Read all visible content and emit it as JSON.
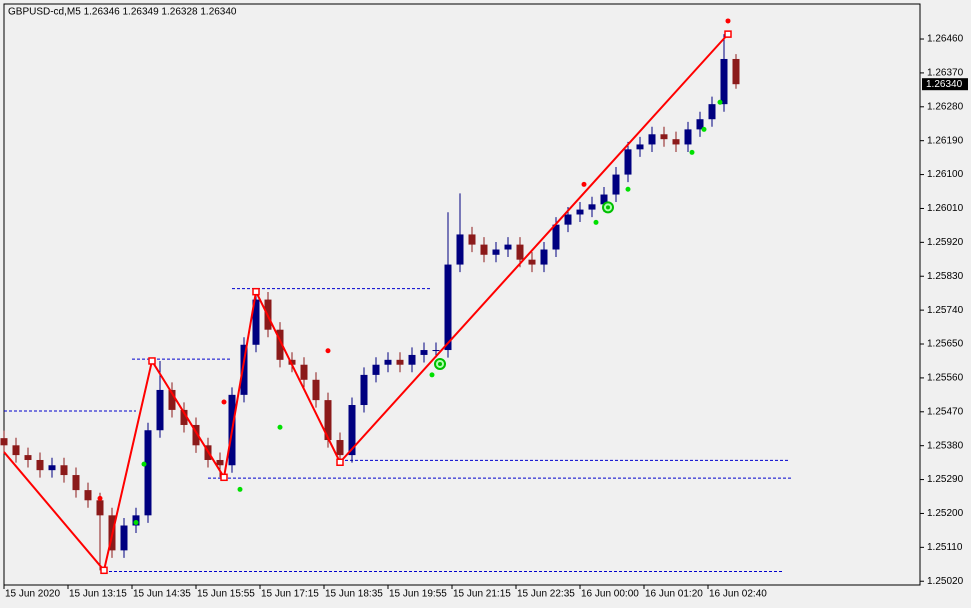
{
  "chart_data": {
    "type": "candlestick",
    "title": "GBPUSD-cd,M5  1.26346 1.26349 1.26328 1.26340",
    "x": [
      0,
      3,
      6,
      9,
      12,
      15,
      18,
      21,
      24,
      27,
      30,
      33,
      36,
      39,
      42,
      45,
      48,
      51,
      54,
      57,
      60,
      63,
      66,
      69,
      72,
      75,
      78,
      81,
      84,
      87,
      90,
      93,
      96,
      99,
      102,
      105,
      108,
      111,
      114,
      117,
      120,
      123,
      126,
      129,
      132,
      135,
      138,
      141,
      144,
      147,
      150,
      153,
      156,
      159,
      162,
      165,
      168,
      171,
      174,
      177,
      180,
      183
    ],
    "open": [
      1.254,
      1.25381,
      1.25355,
      1.25342,
      1.25315,
      1.25328,
      1.25302,
      1.25262,
      1.25235,
      1.25195,
      1.25102,
      1.25168,
      1.25195,
      1.25421,
      1.25528,
      1.25475,
      1.25435,
      1.25381,
      1.25342,
      1.25328,
      1.25515,
      1.25648,
      1.25768,
      1.25688,
      1.25608,
      1.25595,
      1.25555,
      1.25501,
      1.25395,
      1.25355,
      1.25488,
      1.25568,
      1.25595,
      1.25608,
      1.25595,
      1.25621,
      1.25634,
      1.25634,
      1.25861,
      1.25941,
      1.25914,
      1.25887,
      1.25901,
      1.25914,
      1.25874,
      1.25861,
      1.25901,
      1.25967,
      1.25994,
      1.26007,
      1.26021,
      1.26047,
      1.261,
      1.26167,
      1.2618,
      1.26207,
      1.26194,
      1.2618,
      1.2622,
      1.26247,
      1.26287,
      1.26407
    ],
    "high": [
      1.2542,
      1.25401,
      1.25375,
      1.25362,
      1.25348,
      1.25348,
      1.25322,
      1.25282,
      1.25255,
      1.25215,
      1.25188,
      1.25215,
      1.25441,
      1.25605,
      1.25548,
      1.25495,
      1.25455,
      1.25401,
      1.25362,
      1.25535,
      1.25668,
      1.25789,
      1.25788,
      1.25708,
      1.25628,
      1.25615,
      1.25575,
      1.25521,
      1.25415,
      1.25508,
      1.25588,
      1.25615,
      1.25628,
      1.25628,
      1.25641,
      1.25654,
      1.25654,
      1.26,
      1.2605,
      1.25961,
      1.25934,
      1.25921,
      1.25934,
      1.25934,
      1.25894,
      1.25921,
      1.25987,
      1.26014,
      1.26027,
      1.26041,
      1.26067,
      1.2612,
      1.26187,
      1.262,
      1.26227,
      1.26227,
      1.26214,
      1.2624,
      1.26267,
      1.26307,
      1.26473,
      1.2642
    ],
    "low": [
      1.25361,
      1.25335,
      1.25322,
      1.25295,
      1.25295,
      1.25282,
      1.25242,
      1.25215,
      1.25049,
      1.25082,
      1.25082,
      1.25148,
      1.25175,
      1.25401,
      1.25455,
      1.25415,
      1.25361,
      1.25322,
      1.25296,
      1.25308,
      1.25495,
      1.25628,
      1.25668,
      1.25588,
      1.25575,
      1.25535,
      1.25481,
      1.25375,
      1.25336,
      1.25335,
      1.25468,
      1.25548,
      1.25575,
      1.25575,
      1.25575,
      1.25601,
      1.25614,
      1.25614,
      1.25841,
      1.25894,
      1.25867,
      1.25867,
      1.25881,
      1.25854,
      1.25841,
      1.25841,
      1.25881,
      1.25947,
      1.25974,
      1.25987,
      1.26001,
      1.26027,
      1.2608,
      1.26147,
      1.2616,
      1.26174,
      1.2616,
      1.2616,
      1.262,
      1.26227,
      1.26267,
      1.26328
    ],
    "close": [
      1.25381,
      1.25355,
      1.25342,
      1.25315,
      1.25328,
      1.25302,
      1.25262,
      1.25235,
      1.25195,
      1.25102,
      1.25168,
      1.25195,
      1.25421,
      1.25528,
      1.25475,
      1.25435,
      1.25381,
      1.25342,
      1.25328,
      1.25515,
      1.25648,
      1.25768,
      1.25688,
      1.25608,
      1.25595,
      1.25555,
      1.25501,
      1.25395,
      1.25355,
      1.25488,
      1.25568,
      1.25595,
      1.25608,
      1.25595,
      1.25621,
      1.25634,
      1.25634,
      1.25861,
      1.25941,
      1.25914,
      1.25887,
      1.25901,
      1.25914,
      1.25874,
      1.25861,
      1.25901,
      1.25967,
      1.25994,
      1.26007,
      1.26021,
      1.26047,
      1.261,
      1.26167,
      1.2618,
      1.26207,
      1.26194,
      1.2618,
      1.2622,
      1.26247,
      1.26287,
      1.26407,
      1.2634
    ],
    "up_color": "#000080",
    "down_color": "#8b1a1a",
    "xlim": [
      0,
      229
    ],
    "ylim": [
      1.2501,
      1.26553
    ],
    "xticks": [
      {
        "value": 0,
        "label": "15 Jun 2020"
      },
      {
        "value": 16,
        "label": "15 Jun 13:15"
      },
      {
        "value": 32,
        "label": "15 Jun 14:35"
      },
      {
        "value": 48,
        "label": "15 Jun 15:55"
      },
      {
        "value": 64,
        "label": "15 Jun 17:15"
      },
      {
        "value": 80,
        "label": "15 Jun 18:35"
      },
      {
        "value": 96,
        "label": "15 Jun 19:55"
      },
      {
        "value": 112,
        "label": "15 Jun 21:15"
      },
      {
        "value": 128,
        "label": "15 Jun 22:35"
      },
      {
        "value": 144,
        "label": "16 Jun 00:00"
      },
      {
        "value": 160,
        "label": "16 Jun 01:20"
      },
      {
        "value": 176,
        "label": "16 Jun 02:40"
      }
    ],
    "yticks": [
      {
        "value": 1.2502,
        "label": "1.25020"
      },
      {
        "value": 1.2511,
        "label": "1.25110"
      },
      {
        "value": 1.252,
        "label": "1.25200"
      },
      {
        "value": 1.2529,
        "label": "1.25290"
      },
      {
        "value": 1.2538,
        "label": "1.25380"
      },
      {
        "value": 1.2547,
        "label": "1.25470"
      },
      {
        "value": 1.2556,
        "label": "1.25560"
      },
      {
        "value": 1.2565,
        "label": "1.25650"
      },
      {
        "value": 1.2574,
        "label": "1.25740"
      },
      {
        "value": 1.2583,
        "label": "1.25830"
      },
      {
        "value": 1.2592,
        "label": "1.25920"
      },
      {
        "value": 1.2601,
        "label": "1.26010"
      },
      {
        "value": 1.261,
        "label": "1.26100"
      },
      {
        "value": 1.2619,
        "label": "1.26190"
      },
      {
        "value": 1.2628,
        "label": "1.26280"
      },
      {
        "value": 1.2637,
        "label": "1.26370"
      },
      {
        "value": 1.2646,
        "label": "1.26460"
      }
    ],
    "grid": false,
    "current_price": {
      "value": 1.2634,
      "label": "1.26340"
    },
    "zigzag": {
      "color": "#ff0000",
      "x": [
        0,
        25,
        37,
        55,
        63,
        84,
        181
      ],
      "values": [
        1.25363,
        1.25049,
        1.25605,
        1.25296,
        1.25789,
        1.25336,
        1.26473
      ]
    },
    "levels": {
      "color": "#0000cd",
      "items": [
        {
          "x": [
            0,
            33
          ],
          "value": 1.25472
        },
        {
          "x": [
            32,
            57
          ],
          "value": 1.2561
        },
        {
          "x": [
            57,
            107
          ],
          "value": 1.25797
        },
        {
          "x": [
            84,
            196
          ],
          "value": 1.25341
        },
        {
          "x": [
            51,
            197
          ],
          "value": 1.25294
        },
        {
          "x": [
            25,
            195
          ],
          "value": 1.25046
        }
      ]
    },
    "red_dots": {
      "color": "#ff0000",
      "x": [
        24,
        55,
        81,
        145,
        181
      ],
      "values": [
        1.2524,
        1.25496,
        1.25632,
        1.26074,
        1.26508
      ]
    },
    "green_dots": {
      "color": "#00e000",
      "x": [
        35,
        33,
        59,
        69,
        107,
        148,
        156,
        172,
        175,
        179
      ],
      "values": [
        1.25331,
        1.25176,
        1.25264,
        1.25429,
        1.25568,
        1.25973,
        1.26061,
        1.26159,
        1.2622,
        1.26292
      ]
    },
    "green_rings": {
      "color": "#00c000",
      "x": [
        109,
        151
      ],
      "values": [
        1.25597,
        1.26013
      ]
    }
  }
}
